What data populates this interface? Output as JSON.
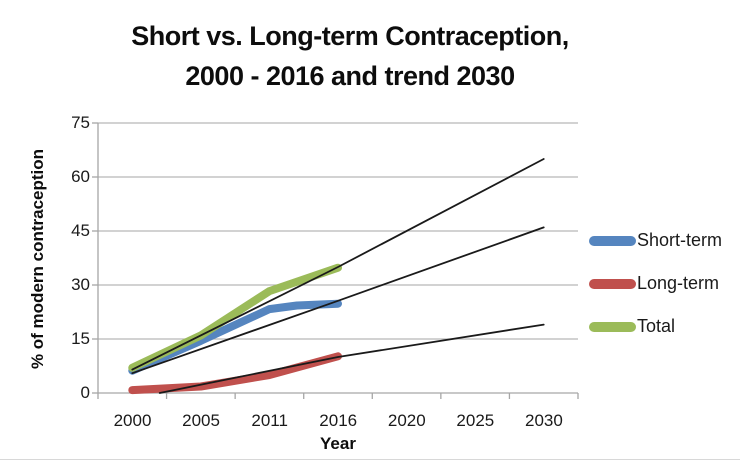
{
  "title": {
    "line1": "Short vs. Long-term Contraception,",
    "line2": "2000 - 2016 and trend 2030"
  },
  "chart_data": {
    "type": "line",
    "title": "Short vs. Long-term Contraception, 2000 - 2016 and trend 2030",
    "xlabel": "Year",
    "ylabel": "% of modern contraception",
    "ylim": [
      0,
      75
    ],
    "yticks": [
      0,
      15,
      30,
      45,
      60,
      75
    ],
    "categories": [
      "2000",
      "2005",
      "2011",
      "2016",
      "2020",
      "2025",
      "2030"
    ],
    "category_years": [
      2000,
      2005,
      2011,
      2016,
      2020,
      2025,
      2030
    ],
    "grid": "horizontal-gridlines",
    "legend_position": "right",
    "axis_color": "#a6a6a6",
    "gridline_color": "#b8b8b8",
    "trend_color": "#1a1a1a",
    "series": [
      {
        "name": "Short-term",
        "color": "#5585bf",
        "points": [
          [
            2000,
            6.2
          ],
          [
            2005,
            14.5
          ],
          [
            2011,
            23.3
          ],
          [
            2013,
            24.3
          ],
          [
            2016,
            24.8
          ]
        ]
      },
      {
        "name": "Long-term",
        "color": "#c0504d",
        "points": [
          [
            2000,
            0.8
          ],
          [
            2005,
            1.8
          ],
          [
            2011,
            5.0
          ],
          [
            2016,
            10.2
          ]
        ]
      },
      {
        "name": "Total",
        "color": "#9bbb59",
        "points": [
          [
            2000,
            7.0
          ],
          [
            2005,
            16.0
          ],
          [
            2011,
            28.3
          ],
          [
            2016,
            34.8
          ]
        ]
      }
    ],
    "trendlines": [
      {
        "name": "total-trend-2030",
        "points": [
          [
            2000,
            6.5
          ],
          [
            2016,
            35.0
          ],
          [
            2030,
            65.0
          ]
        ]
      },
      {
        "name": "short-term-trend-2030",
        "points": [
          [
            2000,
            5.5
          ],
          [
            2016,
            25.6
          ],
          [
            2030,
            46.0
          ]
        ]
      },
      {
        "name": "long-term-trend-2030",
        "points": [
          [
            2002,
            0.0
          ],
          [
            2016,
            10.0
          ],
          [
            2030,
            19.0
          ]
        ]
      }
    ],
    "legend": [
      {
        "label": "Short-term",
        "color": "#5585bf"
      },
      {
        "label": "Long-term",
        "color": "#c0504d"
      },
      {
        "label": "Total",
        "color": "#9bbb59"
      }
    ]
  }
}
